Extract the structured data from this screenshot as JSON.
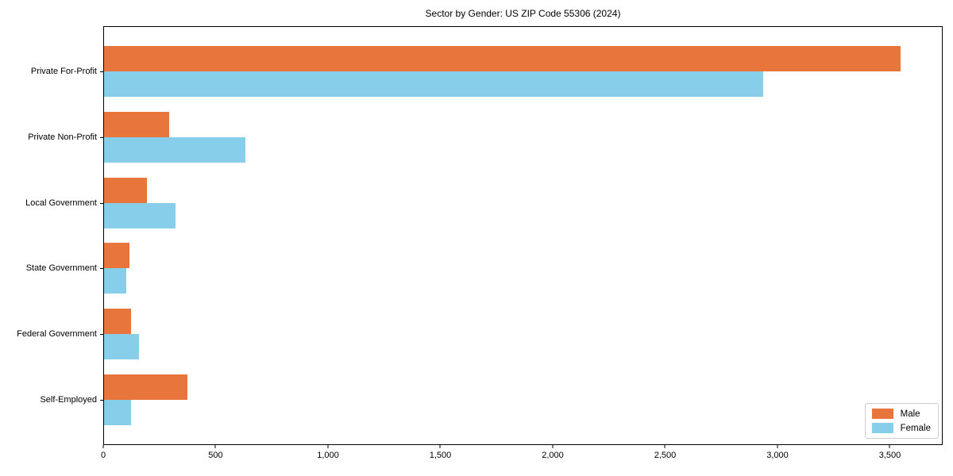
{
  "chart_data": {
    "type": "bar",
    "orientation": "horizontal",
    "title": "Sector by Gender: US ZIP Code 55306 (2024)",
    "categories": [
      "Private For-Profit",
      "Private Non-Profit",
      "Local Government",
      "State Government",
      "Federal Government",
      "Self-Employed"
    ],
    "series": [
      {
        "name": "Male",
        "color": "#e8763c",
        "values": [
          3550,
          290,
          190,
          115,
          120,
          370
        ]
      },
      {
        "name": "Female",
        "color": "#87ceeb",
        "values": [
          2940,
          630,
          320,
          100,
          155,
          120
        ]
      }
    ],
    "xlabel": "",
    "ylabel": "",
    "xlim": [
      0,
      3735
    ],
    "x_ticks": [
      0,
      500,
      1000,
      1500,
      2000,
      2500,
      3000,
      3500
    ],
    "x_tick_labels": [
      "0",
      "500",
      "1,000",
      "1,500",
      "2,000",
      "2,500",
      "3,000",
      "3,500"
    ],
    "grid": false,
    "legend_position": "lower right"
  }
}
